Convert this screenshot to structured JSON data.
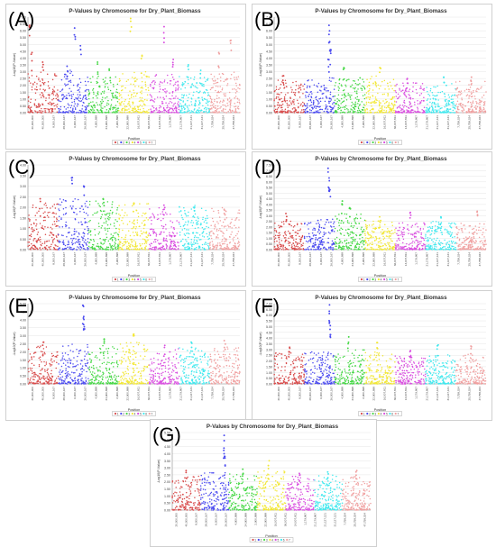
{
  "colors": [
    "#d84b4b",
    "#4a4af0",
    "#45d845",
    "#f2e735",
    "#d94fe0",
    "#3fe8ee",
    "#f0a0a0"
  ],
  "chromosome_labels": [
    "1",
    "2",
    "3",
    "4",
    "5",
    "6",
    "7"
  ],
  "chart_data": [
    {
      "type": "scatter",
      "panel_label": "(A)",
      "title": "P-Values by Chromosome for Dry_Plant_Biomass",
      "xlabel": "Position",
      "ylabel": "-Log10(P-Value)",
      "ylim": [
        0,
        7
      ],
      "yticks": [
        "0.00",
        "0.50",
        "1.00",
        "1.50",
        "2.00",
        "2.50",
        "3.00",
        "3.50",
        "4.00",
        "4.50",
        "5.00",
        "5.50",
        "6.00",
        "6.50",
        "7.00"
      ],
      "xticks": [
        "20,000,000",
        "40,000,000",
        "8,000,167",
        "28,000,167",
        "6,000,167",
        "26,000,167",
        "4,900,898",
        "24,900,898",
        "2,900,898",
        "22,900,898",
        "16,007,811",
        "36,007,811",
        "14,007,811",
        "1,179,867",
        "21,179,867",
        "21,127,121",
        "31,127,121",
        "7,758,024",
        "25,758,024",
        "47,758,024"
      ],
      "series": [
        {
          "chromosome": "1",
          "baseline_max": 2.6,
          "peaks": [
            {
              "position": 0.05,
              "value": 6.4
            },
            {
              "position": 0.12,
              "value": 4.4
            },
            {
              "position": 0.5,
              "value": 3.7
            }
          ]
        },
        {
          "chromosome": "2",
          "baseline_max": 2.8,
          "peaks": [
            {
              "position": 0.55,
              "value": 6.2
            },
            {
              "position": 0.75,
              "value": 4.9
            },
            {
              "position": 0.3,
              "value": 3.4
            }
          ]
        },
        {
          "chromosome": "3",
          "baseline_max": 2.3,
          "peaks": [
            {
              "position": 0.3,
              "value": 3.7
            },
            {
              "position": 0.7,
              "value": 3.2
            }
          ]
        },
        {
          "chromosome": "4",
          "baseline_max": 2.6,
          "peaks": [
            {
              "position": 0.4,
              "value": 6.9
            },
            {
              "position": 0.75,
              "value": 4.2
            }
          ]
        },
        {
          "chromosome": "5",
          "baseline_max": 2.4,
          "peaks": [
            {
              "position": 0.5,
              "value": 6.3
            },
            {
              "position": 0.8,
              "value": 3.9
            }
          ]
        },
        {
          "chromosome": "6",
          "baseline_max": 2.3,
          "peaks": [
            {
              "position": 0.3,
              "value": 3.5
            },
            {
              "position": 0.7,
              "value": 3.1
            }
          ]
        },
        {
          "chromosome": "7",
          "baseline_max": 2.6,
          "peaks": [
            {
              "position": 0.3,
              "value": 4.4
            },
            {
              "position": 0.7,
              "value": 5.3
            }
          ]
        }
      ]
    },
    {
      "type": "scatter",
      "panel_label": "(B)",
      "title": "P-Values by Chromosome for Dry_Plant_Biomass",
      "xlabel": "Position",
      "ylabel": "-Log10(P-Value)",
      "ylim": [
        0,
        7
      ],
      "yticks": [
        "0.00",
        "0.50",
        "1.00",
        "1.50",
        "2.00",
        "2.50",
        "3.00",
        "3.50",
        "4.00",
        "4.50",
        "5.00",
        "5.50",
        "6.00",
        "6.50",
        "7.00"
      ],
      "xticks": [
        "20,000,000",
        "40,000,000",
        "8,000,167",
        "28,000,167",
        "6,000,167",
        "26,000,167",
        "4,900,898",
        "24,900,898",
        "2,900,898",
        "22,900,898",
        "16,007,811",
        "36,007,811",
        "14,007,811",
        "1,179,867",
        "21,179,867",
        "21,127,121",
        "31,127,121",
        "7,758,024",
        "25,758,024",
        "47,758,024"
      ],
      "series": [
        {
          "chromosome": "1",
          "baseline_max": 2.0,
          "peaks": [
            {
              "position": 0.3,
              "value": 2.7
            }
          ]
        },
        {
          "chromosome": "2",
          "baseline_max": 2.2,
          "peaks": [
            {
              "position": 0.82,
              "value": 6.4
            },
            {
              "position": 0.84,
              "value": 5.2
            },
            {
              "position": 0.86,
              "value": 4.6
            },
            {
              "position": 0.8,
              "value": 3.9
            }
          ]
        },
        {
          "chromosome": "3",
          "baseline_max": 2.2,
          "peaks": [
            {
              "position": 0.3,
              "value": 3.3
            }
          ]
        },
        {
          "chromosome": "4",
          "baseline_max": 2.3,
          "peaks": [
            {
              "position": 0.5,
              "value": 3.3
            }
          ]
        },
        {
          "chromosome": "5",
          "baseline_max": 1.8,
          "peaks": [
            {
              "position": 0.4,
              "value": 2.5
            }
          ]
        },
        {
          "chromosome": "6",
          "baseline_max": 1.8,
          "peaks": [
            {
              "position": 0.6,
              "value": 2.6
            }
          ]
        },
        {
          "chromosome": "7",
          "baseline_max": 1.9,
          "peaks": [
            {
              "position": 0.5,
              "value": 2.6
            }
          ]
        }
      ]
    },
    {
      "type": "scatter",
      "panel_label": "(C)",
      "title": "P-Values by Chromosome for Dry_Plant_Biomass",
      "xlabel": "Position",
      "ylabel": "-Log10(P-Value)",
      "ylim": [
        0,
        4
      ],
      "yticks": [
        "0.00",
        "0.50",
        "1.00",
        "1.50",
        "2.00",
        "2.50",
        "3.00",
        "3.50",
        "4.00"
      ],
      "xticks": [
        "20,000,000",
        "40,000,000",
        "8,000,167",
        "28,000,167",
        "6,000,167",
        "26,000,167",
        "4,900,898",
        "24,900,898",
        "2,900,898",
        "22,900,898",
        "16,007,811",
        "36,007,811",
        "14,007,811",
        "1,179,867",
        "21,179,867",
        "21,127,121",
        "31,127,121",
        "7,758,024",
        "25,758,024",
        "47,758,024"
      ],
      "series": [
        {
          "chromosome": "1",
          "baseline_max": 1.8,
          "peaks": [
            {
              "position": 0.4,
              "value": 2.4
            }
          ]
        },
        {
          "chromosome": "2",
          "baseline_max": 2.0,
          "peaks": [
            {
              "position": 0.45,
              "value": 3.4
            },
            {
              "position": 0.85,
              "value": 3.0
            }
          ]
        },
        {
          "chromosome": "3",
          "baseline_max": 1.9,
          "peaks": [
            {
              "position": 0.5,
              "value": 2.4
            }
          ]
        },
        {
          "chromosome": "4",
          "baseline_max": 1.8,
          "peaks": [
            {
              "position": 0.5,
              "value": 2.2
            }
          ]
        },
        {
          "chromosome": "5",
          "baseline_max": 1.7,
          "peaks": [
            {
              "position": 0.5,
              "value": 2.1
            }
          ]
        },
        {
          "chromosome": "6",
          "baseline_max": 1.7,
          "peaks": [
            {
              "position": 0.5,
              "value": 2.0
            }
          ]
        },
        {
          "chromosome": "7",
          "baseline_max": 1.6,
          "peaks": [
            {
              "position": 0.5,
              "value": 1.9
            }
          ]
        }
      ]
    },
    {
      "type": "scatter",
      "panel_label": "(D)",
      "title": "P-Values by Chromosome for Dry_Plant_Biomass",
      "xlabel": "Position",
      "ylabel": "-Log10(P-Value)",
      "ylim": [
        0,
        7.5
      ],
      "yticks": [
        "0.00",
        "0.50",
        "1.00",
        "1.50",
        "2.00",
        "2.50",
        "3.00",
        "3.50",
        "4.00",
        "4.50",
        "5.00",
        "5.50",
        "6.00",
        "6.50",
        "7.00",
        "7.50"
      ],
      "xticks": [
        "20,000,000",
        "40,000,000",
        "8,000,167",
        "28,000,167",
        "6,000,167",
        "26,000,167",
        "4,900,898",
        "24,900,898",
        "2,900,898",
        "22,900,898",
        "16,007,811",
        "36,007,811",
        "14,007,811",
        "1,179,867",
        "21,179,867",
        "21,127,121",
        "31,127,121",
        "7,758,024",
        "25,758,024",
        "47,758,024"
      ],
      "series": [
        {
          "chromosome": "1",
          "baseline_max": 2.2,
          "peaks": [
            {
              "position": 0.4,
              "value": 3.2
            }
          ]
        },
        {
          "chromosome": "2",
          "baseline_max": 2.4,
          "peaks": [
            {
              "position": 0.8,
              "value": 7.2
            },
            {
              "position": 0.82,
              "value": 6.1
            },
            {
              "position": 0.84,
              "value": 5.3
            }
          ]
        },
        {
          "chromosome": "3",
          "baseline_max": 2.8,
          "peaks": [
            {
              "position": 0.25,
              "value": 4.3
            },
            {
              "position": 0.5,
              "value": 3.7
            }
          ]
        },
        {
          "chromosome": "4",
          "baseline_max": 2.2,
          "peaks": [
            {
              "position": 0.5,
              "value": 2.9
            }
          ]
        },
        {
          "chromosome": "5",
          "baseline_max": 2.0,
          "peaks": [
            {
              "position": 0.5,
              "value": 3.3
            }
          ]
        },
        {
          "chromosome": "6",
          "baseline_max": 2.1,
          "peaks": [
            {
              "position": 0.5,
              "value": 2.9
            }
          ]
        },
        {
          "chromosome": "7",
          "baseline_max": 2.0,
          "peaks": [
            {
              "position": 0.7,
              "value": 3.4
            }
          ]
        }
      ]
    },
    {
      "type": "scatter",
      "panel_label": "(E)",
      "title": "P-Values by Chromosome for Dry_Plant_Biomass",
      "xlabel": "Position",
      "ylabel": "-Log10(P-Value)",
      "ylim": [
        0,
        5
      ],
      "yticks": [
        "0.00",
        "0.50",
        "1.00",
        "1.50",
        "2.00",
        "2.50",
        "3.00",
        "3.50",
        "4.00",
        "4.50",
        "5.00"
      ],
      "xticks": [
        "20,000,000",
        "40,000,000",
        "8,000,167",
        "28,000,167",
        "6,000,167",
        "26,000,167",
        "4,900,898",
        "24,900,898",
        "2,900,898",
        "22,900,898",
        "16,007,811",
        "36,007,811",
        "14,007,811",
        "1,179,867",
        "21,179,867",
        "21,127,121",
        "31,127,121",
        "7,758,024",
        "25,758,024",
        "47,758,024"
      ],
      "series": [
        {
          "chromosome": "1",
          "baseline_max": 2.0,
          "peaks": [
            {
              "position": 0.5,
              "value": 2.6
            }
          ]
        },
        {
          "chromosome": "2",
          "baseline_max": 2.1,
          "peaks": [
            {
              "position": 0.82,
              "value": 4.9
            },
            {
              "position": 0.84,
              "value": 4.2
            },
            {
              "position": 0.86,
              "value": 3.7
            }
          ]
        },
        {
          "chromosome": "3",
          "baseline_max": 2.1,
          "peaks": [
            {
              "position": 0.5,
              "value": 2.8
            }
          ]
        },
        {
          "chromosome": "4",
          "baseline_max": 2.2,
          "peaks": [
            {
              "position": 0.5,
              "value": 3.1
            }
          ]
        },
        {
          "chromosome": "5",
          "baseline_max": 1.8,
          "peaks": [
            {
              "position": 0.5,
              "value": 2.4
            }
          ]
        },
        {
          "chromosome": "6",
          "baseline_max": 1.9,
          "peaks": [
            {
              "position": 0.4,
              "value": 2.6
            }
          ]
        },
        {
          "chromosome": "7",
          "baseline_max": 1.9,
          "peaks": [
            {
              "position": 0.5,
              "value": 2.7
            }
          ]
        }
      ]
    },
    {
      "type": "scatter",
      "panel_label": "(F)",
      "title": "P-Values by Chromosome for Dry_Plant_Biomass",
      "xlabel": "Position",
      "ylabel": "-Log10(P-Value)",
      "ylim": [
        0,
        7
      ],
      "yticks": [
        "0.00",
        "0.50",
        "1.00",
        "1.50",
        "2.00",
        "2.50",
        "3.00",
        "3.50",
        "4.00",
        "4.50",
        "5.00",
        "5.50",
        "6.00",
        "6.50",
        "7.00"
      ],
      "xticks": [
        "20,000,000",
        "40,000,000",
        "8,000,167",
        "28,000,167",
        "6,000,167",
        "26,000,167",
        "4,900,898",
        "24,900,898",
        "2,900,898",
        "22,900,898",
        "16,007,811",
        "36,007,811",
        "14,007,811",
        "1,179,867",
        "21,179,867",
        "21,127,121",
        "31,127,121",
        "7,758,024",
        "25,758,024",
        "47,758,024"
      ],
      "series": [
        {
          "chromosome": "1",
          "baseline_max": 2.3,
          "peaks": [
            {
              "position": 0.5,
              "value": 3.2
            }
          ]
        },
        {
          "chromosome": "2",
          "baseline_max": 2.4,
          "peaks": [
            {
              "position": 0.82,
              "value": 6.9
            },
            {
              "position": 0.84,
              "value": 5.4
            },
            {
              "position": 0.86,
              "value": 4.3
            }
          ]
        },
        {
          "chromosome": "3",
          "baseline_max": 2.6,
          "peaks": [
            {
              "position": 0.45,
              "value": 4.1
            }
          ]
        },
        {
          "chromosome": "4",
          "baseline_max": 2.5,
          "peaks": [
            {
              "position": 0.4,
              "value": 3.6
            }
          ]
        },
        {
          "chromosome": "5",
          "baseline_max": 2.1,
          "peaks": [
            {
              "position": 0.5,
              "value": 2.9
            }
          ]
        },
        {
          "chromosome": "6",
          "baseline_max": 2.2,
          "peaks": [
            {
              "position": 0.4,
              "value": 3.4
            }
          ]
        },
        {
          "chromosome": "7",
          "baseline_max": 2.2,
          "peaks": [
            {
              "position": 0.5,
              "value": 3.3
            }
          ]
        }
      ]
    },
    {
      "type": "scatter",
      "panel_label": "(G)",
      "title": "P-Values by Chromosome for Dry_Plant_Biomass",
      "xlabel": "Position",
      "ylabel": "-Log10(P-Value)",
      "ylim": [
        0,
        5.5
      ],
      "yticks": [
        "0.00",
        "0.50",
        "1.00",
        "1.50",
        "2.00",
        "2.50",
        "3.00",
        "3.50",
        "4.00",
        "4.50",
        "5.00",
        "5.50"
      ],
      "xticks": [
        "20,000,000",
        "40,000,000",
        "8,000,167",
        "28,000,167",
        "6,000,167",
        "26,000,167",
        "4,900,898",
        "24,900,898",
        "2,900,898",
        "22,900,898",
        "16,007,811",
        "36,007,811",
        "14,007,811",
        "1,179,867",
        "21,179,867",
        "21,127,121",
        "31,127,121",
        "7,758,024",
        "25,758,024",
        "47,758,024"
      ],
      "series": [
        {
          "chromosome": "1",
          "baseline_max": 2.1,
          "peaks": [
            {
              "position": 0.5,
              "value": 2.8
            }
          ]
        },
        {
          "chromosome": "2",
          "baseline_max": 2.3,
          "peaks": [
            {
              "position": 0.82,
              "value": 5.3
            },
            {
              "position": 0.84,
              "value": 4.4
            },
            {
              "position": 0.86,
              "value": 3.8
            }
          ]
        },
        {
          "chromosome": "3",
          "baseline_max": 2.2,
          "peaks": [
            {
              "position": 0.5,
              "value": 2.9
            }
          ]
        },
        {
          "chromosome": "4",
          "baseline_max": 2.4,
          "peaks": [
            {
              "position": 0.4,
              "value": 3.5
            }
          ]
        },
        {
          "chromosome": "5",
          "baseline_max": 2.0,
          "peaks": [
            {
              "position": 0.5,
              "value": 2.6
            }
          ]
        },
        {
          "chromosome": "6",
          "baseline_max": 2.1,
          "peaks": [
            {
              "position": 0.5,
              "value": 2.7
            }
          ]
        },
        {
          "chromosome": "7",
          "baseline_max": 2.0,
          "peaks": [
            {
              "position": 0.5,
              "value": 2.8
            }
          ]
        }
      ]
    }
  ]
}
